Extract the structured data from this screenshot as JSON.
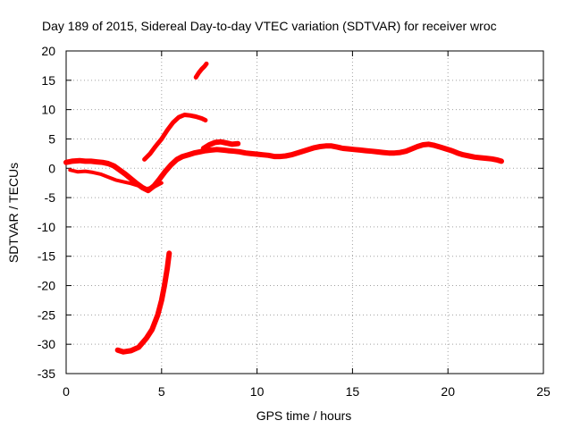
{
  "chart_data": {
    "type": "line",
    "title": "Day 189 of 2015, Sidereal Day-to-day VTEC variation (SDTVAR) for receiver wroc",
    "xlabel": "GPS time / hours",
    "ylabel": "SDTVAR / TECUs",
    "xlim": [
      0,
      25
    ],
    "ylim": [
      -35,
      20
    ],
    "xticks": [
      0,
      5,
      10,
      15,
      20,
      25
    ],
    "yticks": [
      -35,
      -30,
      -25,
      -20,
      -15,
      -10,
      -5,
      0,
      5,
      10,
      15,
      20
    ],
    "grid": true,
    "color": "#ff0000",
    "series": [
      {
        "name": "main-band",
        "width": 6,
        "x": [
          0,
          0.3,
          0.7,
          1.0,
          1.3,
          1.6,
          1.9,
          2.2,
          2.5,
          2.8,
          3.1,
          3.4,
          3.7,
          4.0,
          4.3,
          4.6,
          4.9,
          5.2,
          5.5,
          5.8,
          6.1,
          6.4,
          6.7,
          7.0,
          7.3,
          7.6,
          7.9,
          8.2,
          8.5,
          8.8,
          9.1,
          9.4,
          9.7,
          10.0,
          10.3,
          10.6,
          10.9,
          11.2,
          11.5,
          11.8,
          12.1,
          12.4,
          12.7,
          13.0,
          13.3,
          13.6,
          13.9,
          14.2,
          14.5,
          14.8,
          15.1,
          15.4,
          15.7,
          16.0,
          16.3,
          16.6,
          16.9,
          17.2,
          17.5,
          17.8,
          18.1,
          18.4,
          18.7,
          19.0,
          19.3,
          19.6,
          19.9,
          20.2,
          20.5,
          20.8,
          21.1,
          21.4,
          21.7,
          22.0,
          22.3,
          22.6,
          22.8
        ],
        "y": [
          1.0,
          1.2,
          1.3,
          1.2,
          1.2,
          1.1,
          1.0,
          0.8,
          0.4,
          -0.3,
          -1.0,
          -1.8,
          -2.6,
          -3.3,
          -3.8,
          -3.0,
          -1.8,
          -0.5,
          0.6,
          1.5,
          2.0,
          2.3,
          2.6,
          2.8,
          3.0,
          3.1,
          3.2,
          3.1,
          3.0,
          2.9,
          2.8,
          2.6,
          2.5,
          2.4,
          2.3,
          2.2,
          2.0,
          2.0,
          2.1,
          2.3,
          2.6,
          2.9,
          3.2,
          3.5,
          3.7,
          3.8,
          3.8,
          3.6,
          3.4,
          3.3,
          3.2,
          3.1,
          3.0,
          2.9,
          2.8,
          2.7,
          2.6,
          2.6,
          2.7,
          2.9,
          3.3,
          3.7,
          4.0,
          4.1,
          3.9,
          3.6,
          3.3,
          3.0,
          2.6,
          2.3,
          2.1,
          1.9,
          1.8,
          1.7,
          1.6,
          1.4,
          1.2
        ]
      },
      {
        "name": "lower-branch",
        "width": 4,
        "x": [
          0.2,
          0.6,
          1.0,
          1.4,
          1.8,
          2.2,
          2.6,
          3.0,
          3.4,
          3.8,
          4.2,
          4.6,
          5.0
        ],
        "y": [
          -0.3,
          -0.6,
          -0.5,
          -0.7,
          -1.0,
          -1.5,
          -2.0,
          -2.3,
          -2.6,
          -3.0,
          -3.5,
          -3.2,
          -2.5
        ]
      },
      {
        "name": "secondary-band",
        "width": 6,
        "x": [
          7.2,
          7.5,
          7.8,
          8.1,
          8.4,
          8.7,
          9.0
        ],
        "y": [
          3.4,
          4.0,
          4.4,
          4.5,
          4.3,
          4.1,
          4.2
        ]
      },
      {
        "name": "rising-arc",
        "width": 5,
        "x": [
          4.1,
          4.4,
          4.7,
          5.0,
          5.3,
          5.6,
          5.9,
          6.2,
          6.5,
          6.8,
          7.1,
          7.3
        ],
        "y": [
          1.5,
          2.5,
          3.8,
          5.0,
          6.5,
          7.8,
          8.7,
          9.1,
          9.0,
          8.8,
          8.5,
          8.2
        ]
      },
      {
        "name": "steep-dip",
        "width": 6,
        "x": [
          2.7,
          3.0,
          3.4,
          3.8,
          4.2,
          4.5,
          4.8,
          5.0,
          5.15,
          5.3,
          5.4
        ],
        "y": [
          -31.0,
          -31.3,
          -31.1,
          -30.5,
          -29.0,
          -27.5,
          -25.0,
          -22.5,
          -20.0,
          -17.0,
          -14.5
        ]
      },
      {
        "name": "top-spike",
        "width": 5,
        "x": [
          6.8,
          6.95,
          7.1,
          7.25,
          7.35
        ],
        "y": [
          15.5,
          16.3,
          16.9,
          17.4,
          17.8
        ]
      }
    ]
  }
}
